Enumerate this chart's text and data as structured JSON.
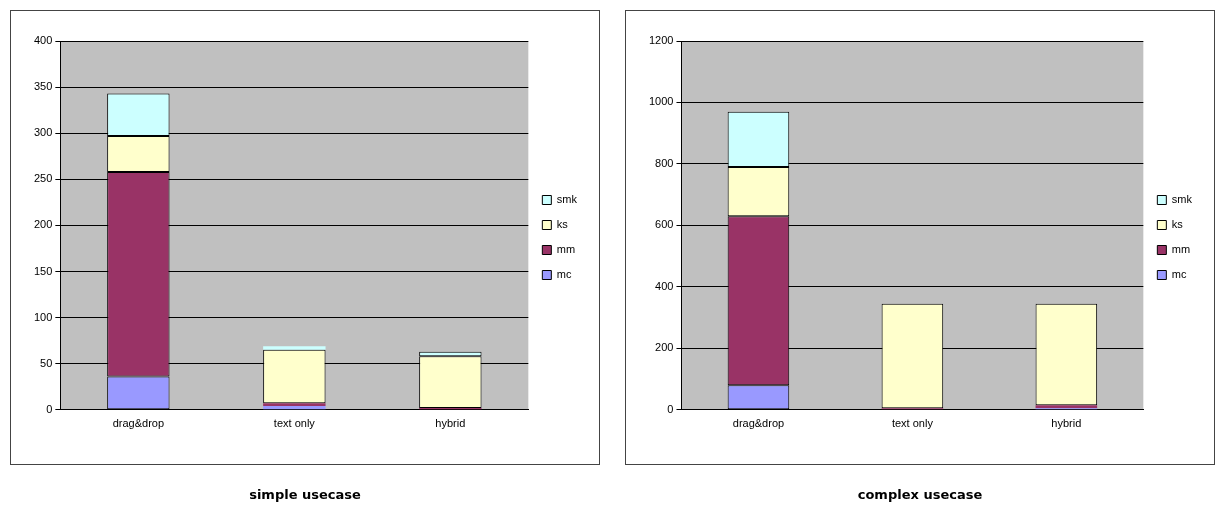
{
  "chart_data": [
    {
      "type": "bar",
      "title": "simple usecase",
      "categories": [
        "drag&drop",
        "text only",
        "hybrid"
      ],
      "stacked": true,
      "ylim": [
        0,
        400
      ],
      "yticks": [
        0,
        50,
        100,
        150,
        200,
        250,
        300,
        350,
        400
      ],
      "grid": "y",
      "legend": "right",
      "series": [
        {
          "name": "mc",
          "color": "#9999ff",
          "values": [
            36,
            4,
            null
          ]
        },
        {
          "name": "mm",
          "color": "#993366",
          "values": [
            222,
            3,
            2
          ]
        },
        {
          "name": "ks",
          "color": "#ffffcc",
          "values": [
            39,
            58,
            56
          ]
        },
        {
          "name": "smk",
          "color": "#ccffff",
          "values": [
            46,
            4,
            5
          ]
        }
      ]
    },
    {
      "type": "bar",
      "title": "complex usecase",
      "categories": [
        "drag&drop",
        "text only",
        "hybrid"
      ],
      "stacked": true,
      "ylim": [
        0,
        1200
      ],
      "yticks": [
        0,
        200,
        400,
        600,
        800,
        1000,
        1200
      ],
      "grid": "y",
      "legend": "right",
      "series": [
        {
          "name": "mc",
          "color": "#9999ff",
          "values": [
            80,
            null,
            5
          ]
        },
        {
          "name": "mm",
          "color": "#993366",
          "values": [
            550,
            5,
            10
          ]
        },
        {
          "name": "ks",
          "color": "#ffffcc",
          "values": [
            160,
            340,
            330
          ]
        },
        {
          "name": "smk",
          "color": "#ccffff",
          "values": [
            180,
            null,
            null
          ]
        }
      ]
    }
  ]
}
